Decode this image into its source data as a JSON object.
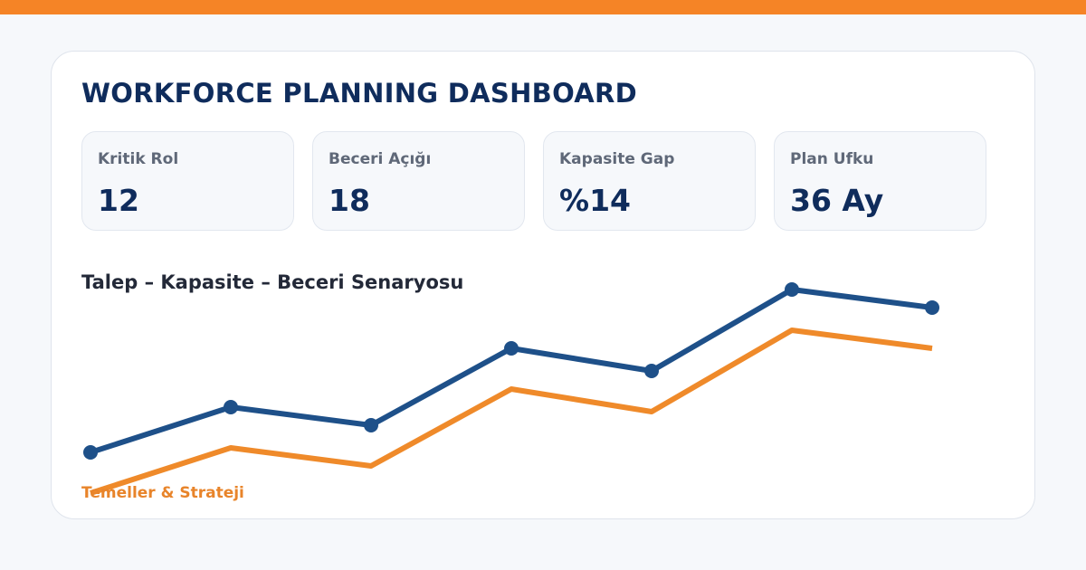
{
  "header": {
    "title": "WORKFORCE PLANNING DASHBOARD",
    "accent_color": "#f58426",
    "title_color": "#0f2c5c"
  },
  "kpis": [
    {
      "label": "Kritik Rol",
      "value": "12"
    },
    {
      "label": "Beceri Açığı",
      "value": "18"
    },
    {
      "label": "Kapasite Gap",
      "value": "%14"
    },
    {
      "label": "Plan Ufku",
      "value": "36 Ay"
    }
  ],
  "chart_data": {
    "type": "line",
    "title": "Talep – Kapasite – Beceri Senaryosu",
    "x": [
      1,
      2,
      3,
      4,
      5,
      6,
      7
    ],
    "series": [
      {
        "values": [
          0.0,
          5.0,
          3.0,
          11.5,
          9.0,
          18.0,
          16.0
        ],
        "color": "#1e5089",
        "markers": true
      },
      {
        "values": [
          -4.5,
          0.5,
          -1.5,
          7.0,
          4.5,
          13.5,
          11.5
        ],
        "color": "#ef8a2a",
        "markers": false
      }
    ],
    "ylim": [
      -5,
      20
    ],
    "axes_visible": false,
    "grid": false,
    "legend": "none"
  },
  "footer": {
    "text": "Temeller & Strateji"
  }
}
